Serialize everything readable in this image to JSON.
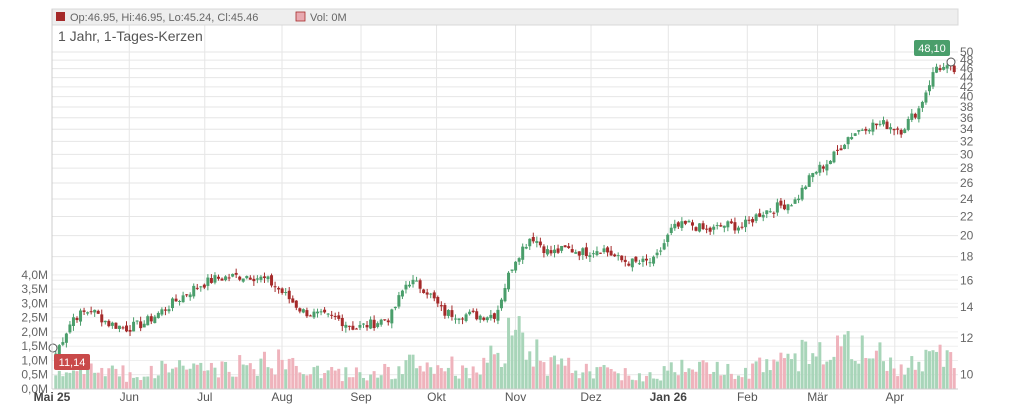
{
  "legend": {
    "ohlc_text": "Op:46.95, Hi:46.95, Lo:45.24, Cl:45.46",
    "vol_text": "Vol: 0M",
    "ohlc_swatch": "#a52a2a",
    "vol_swatch": "#e8a9b0"
  },
  "subtitle": "1 Jahr, 1-Tages-Kerzen",
  "price_flags": {
    "last": "48,10",
    "low": "11,14"
  },
  "colors": {
    "up": "#4a9e6b",
    "down": "#a52a2a",
    "vol_up": "#a8d5b9",
    "vol_down": "#efb3bc",
    "grid": "#e6e6e6"
  },
  "chart_data": {
    "type": "candlestick",
    "price_axis": {
      "scale": "log",
      "range": [
        9.3,
        51
      ],
      "ticks": [
        {
          "v": 10,
          "label": "10"
        },
        {
          "v": 12,
          "label": "12"
        },
        {
          "v": 14,
          "label": "14"
        },
        {
          "v": 16,
          "label": "16"
        },
        {
          "v": 18,
          "label": "18"
        },
        {
          "v": 20,
          "label": "20"
        },
        {
          "v": 22,
          "label": "22"
        },
        {
          "v": 24,
          "label": "24"
        },
        {
          "v": 26,
          "label": "26"
        },
        {
          "v": 28,
          "label": "28"
        },
        {
          "v": 30,
          "label": "30"
        },
        {
          "v": 32,
          "label": "32"
        },
        {
          "v": 34,
          "label": "34"
        },
        {
          "v": 36,
          "label": "36"
        },
        {
          "v": 38,
          "label": "38"
        },
        {
          "v": 40,
          "label": "40"
        },
        {
          "v": 42,
          "label": "42"
        },
        {
          "v": 44,
          "label": "44"
        },
        {
          "v": 46,
          "label": "46"
        },
        {
          "v": 48,
          "label": "48"
        },
        {
          "v": 50,
          "label": "50"
        }
      ]
    },
    "volume_axis": {
      "range": [
        0,
        4.1
      ],
      "ticks": [
        {
          "v": 0,
          "label": "0,0M"
        },
        {
          "v": 0.5,
          "label": "0,5M"
        },
        {
          "v": 1,
          "label": "1,0M"
        },
        {
          "v": 1.5,
          "label": "1,5M"
        },
        {
          "v": 2,
          "label": "2,0M"
        },
        {
          "v": 2.5,
          "label": "2,5M"
        },
        {
          "v": 3,
          "label": "3,0M"
        },
        {
          "v": 3.5,
          "label": "3,5M"
        },
        {
          "v": 4,
          "label": "4,0M"
        }
      ]
    },
    "x_axis": {
      "labels": [
        {
          "label": "Mai 25",
          "week": 0,
          "bold": true
        },
        {
          "label": "Jun",
          "week": 4.4,
          "bold": false
        },
        {
          "label": "Jul",
          "week": 8.7,
          "bold": false
        },
        {
          "label": "Aug",
          "week": 13.1,
          "bold": false
        },
        {
          "label": "Sep",
          "week": 17.6,
          "bold": false
        },
        {
          "label": "Okt",
          "week": 21.9,
          "bold": false
        },
        {
          "label": "Nov",
          "week": 26.4,
          "bold": false
        },
        {
          "label": "Dez",
          "week": 30.7,
          "bold": false
        },
        {
          "label": "Jan 26",
          "week": 35.1,
          "bold": true
        },
        {
          "label": "Feb",
          "week": 39.6,
          "bold": false
        },
        {
          "label": "Mär",
          "week": 43.6,
          "bold": false
        },
        {
          "label": "Apr",
          "week": 48,
          "bold": false
        }
      ],
      "total_weeks": 51.6
    },
    "weekly_close": [
      11.1,
      13.3,
      13.8,
      12.9,
      12.6,
      12.9,
      13.7,
      14.6,
      15.5,
      16.1,
      16.3,
      16.4,
      16.0,
      14.9,
      13.7,
      13.4,
      13.2,
      12.6,
      12.9,
      13.3,
      16.0,
      15.3,
      13.6,
      13.5,
      13.4,
      13.5,
      17.6,
      20.0,
      18.3,
      18.7,
      18.4,
      18.8,
      17.7,
      17.4,
      17.6,
      20.7,
      21.2,
      20.4,
      21.1,
      20.9,
      22.4,
      23.1,
      23.8,
      27.3,
      29.2,
      32.8,
      34.6,
      34.9,
      33.9,
      37.7,
      46.5,
      45.5
    ],
    "volume_profile": [
      0.55,
      0.62,
      0.7,
      0.75,
      0.5,
      0.6,
      0.8,
      0.9,
      0.75,
      0.7,
      0.85,
      0.9,
      1.0,
      0.9,
      0.8,
      0.6,
      0.55,
      0.6,
      0.65,
      0.6,
      0.9,
      0.8,
      0.85,
      0.7,
      0.8,
      1.1,
      1.9,
      1.4,
      0.9,
      0.8,
      0.7,
      0.65,
      0.6,
      0.45,
      0.5,
      0.95,
      0.9,
      0.75,
      0.8,
      0.7,
      0.9,
      0.95,
      1.0,
      1.3,
      1.5,
      1.6,
      1.4,
      1.2,
      0.9,
      1.0,
      1.6,
      1.2
    ]
  }
}
